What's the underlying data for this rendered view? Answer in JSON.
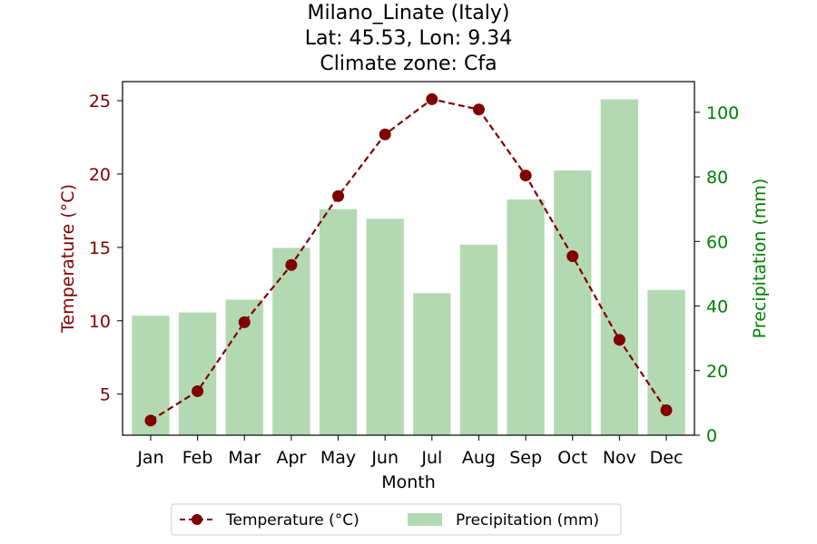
{
  "chart_data": {
    "type": "bar+line",
    "title_lines": [
      "Milano_Linate (Italy)",
      "Lat: 45.53, Lon: 9.34",
      "Climate zone: Cfa"
    ],
    "categories": [
      "Jan",
      "Feb",
      "Mar",
      "Apr",
      "May",
      "Jun",
      "Jul",
      "Aug",
      "Sep",
      "Oct",
      "Nov",
      "Dec"
    ],
    "xlabel": "Month",
    "temperature": {
      "name": "Temperature (°C)",
      "values": [
        3.2,
        5.2,
        9.9,
        13.8,
        18.5,
        22.7,
        25.1,
        24.4,
        19.9,
        14.4,
        8.7,
        3.9
      ],
      "color": "#800000",
      "ylabel": "Temperature (°C)",
      "ylim": [
        2.2,
        26.3
      ],
      "yticks": [
        5,
        10,
        15,
        20,
        25
      ]
    },
    "precipitation": {
      "name": "Precipitation (mm)",
      "values": [
        37,
        38,
        42,
        58,
        70,
        67,
        44,
        59,
        73,
        82,
        104,
        45
      ],
      "color": "#b3d9b3",
      "ylabel": "Precipitation (mm)",
      "ylim": [
        0,
        109.5
      ],
      "yticks": [
        0,
        20,
        40,
        60,
        80,
        100
      ],
      "axis_color": "#008000"
    },
    "legend": {
      "position": "bottom-center",
      "entries": [
        "Temperature (°C)",
        "Precipitation (mm)"
      ]
    },
    "grid": false
  }
}
